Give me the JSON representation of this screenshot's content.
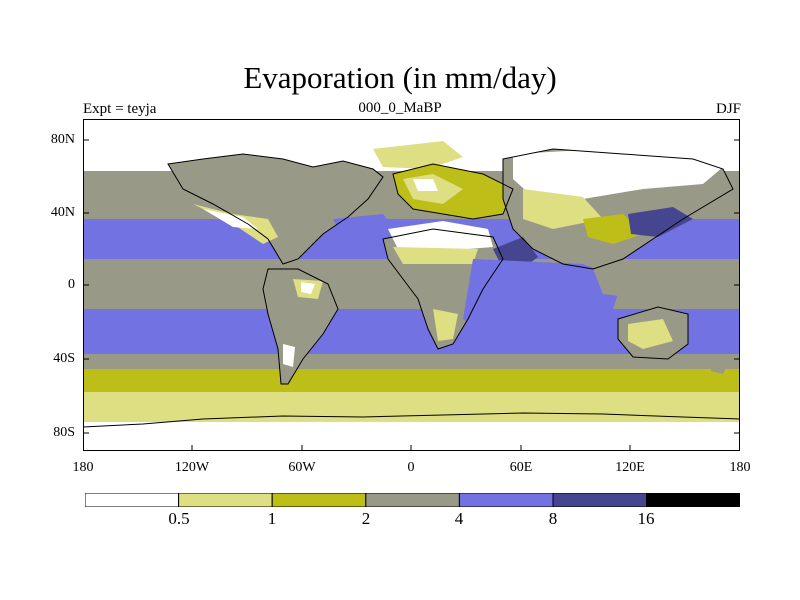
{
  "title": "Evaporation (in mm/day)",
  "left_label": "Expt = teyja",
  "center_label": "000_0_MaBP",
  "right_label": "DJF",
  "colors": {
    "white": "#ffffff",
    "pale_yellow": "#dede82",
    "olive": "#bebe18",
    "gray": "#999988",
    "blue": "#7272e2",
    "dark_blue": "#464690",
    "black": "#000000"
  },
  "lat_ticks": [
    "80N",
    "40N",
    "0",
    "40S",
    "80S"
  ],
  "lon_ticks": [
    "180",
    "120W",
    "60W",
    "0",
    "60E",
    "120E",
    "180"
  ],
  "colorbar": {
    "levels": [
      "0.5",
      "1",
      "2",
      "4",
      "8",
      "16"
    ],
    "bins": [
      "white",
      "pale_yellow",
      "olive",
      "gray",
      "blue",
      "dark_blue",
      "black"
    ]
  }
}
